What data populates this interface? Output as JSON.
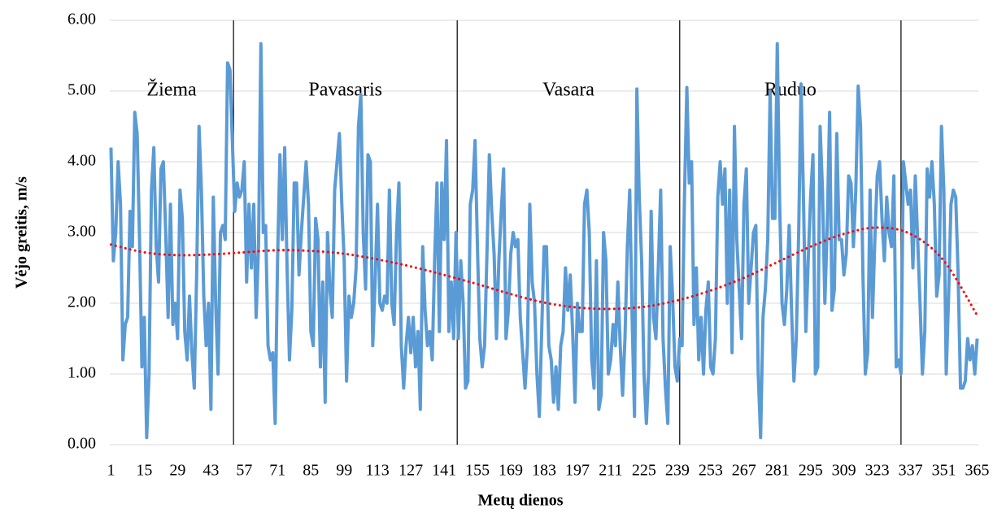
{
  "chart_data": {
    "type": "line",
    "y_label": "Vėjo greitis, m/s",
    "x_label": "Metų dienos",
    "annotations": [
      "Žiema",
      "Pavasaris",
      "Vasara",
      "Ruduo"
    ],
    "season_boundaries": [
      52.5,
      146.5,
      240,
      333
    ],
    "categories": [
      "1",
      null,
      null,
      null,
      null,
      null,
      null,
      null,
      null,
      null,
      null,
      null,
      null,
      null,
      "15",
      null,
      null,
      null,
      null,
      null,
      null,
      null,
      null,
      null,
      null,
      null,
      null,
      null,
      "29",
      null,
      null,
      null,
      null,
      null,
      null,
      null,
      null,
      null,
      null,
      null,
      null,
      null,
      "43",
      null,
      null,
      null,
      null,
      null,
      null,
      null,
      null,
      null,
      null,
      null,
      null,
      null,
      "57",
      null,
      null,
      null,
      null,
      null,
      null,
      null,
      null,
      null,
      null,
      null,
      null,
      null,
      "71",
      null,
      null,
      null,
      null,
      null,
      null,
      null,
      null,
      null,
      null,
      null,
      null,
      null,
      "85",
      null,
      null,
      null,
      null,
      null,
      null,
      null,
      null,
      null,
      null,
      null,
      null,
      null,
      "99",
      null,
      null,
      null,
      null,
      null,
      null,
      null,
      null,
      null,
      null,
      null,
      null,
      null,
      "113",
      null,
      null,
      null,
      null,
      null,
      null,
      null,
      null,
      null,
      null,
      null,
      null,
      null,
      "127",
      null,
      null,
      null,
      null,
      null,
      null,
      null,
      null,
      null,
      null,
      null,
      null,
      null,
      "141",
      null,
      null,
      null,
      null,
      null,
      null,
      null,
      null,
      null,
      null,
      null,
      null,
      null,
      "155",
      null,
      null,
      null,
      null,
      null,
      null,
      null,
      null,
      null,
      null,
      null,
      null,
      null,
      "169",
      null,
      null,
      null,
      null,
      null,
      null,
      null,
      null,
      null,
      null,
      null,
      null,
      null,
      "183",
      null,
      null,
      null,
      null,
      null,
      null,
      null,
      null,
      null,
      null,
      null,
      null,
      null,
      "197",
      null,
      null,
      null,
      null,
      null,
      null,
      null,
      null,
      null,
      null,
      null,
      null,
      null,
      "211",
      null,
      null,
      null,
      null,
      null,
      null,
      null,
      null,
      null,
      null,
      null,
      null,
      null,
      "225",
      null,
      null,
      null,
      null,
      null,
      null,
      null,
      null,
      null,
      null,
      null,
      null,
      null,
      "239",
      null,
      null,
      null,
      null,
      null,
      null,
      null,
      null,
      null,
      null,
      null,
      null,
      null,
      "253",
      null,
      null,
      null,
      null,
      null,
      null,
      null,
      null,
      null,
      null,
      null,
      null,
      null,
      "267",
      null,
      null,
      null,
      null,
      null,
      null,
      null,
      null,
      null,
      null,
      null,
      null,
      null,
      "281",
      null,
      null,
      null,
      null,
      null,
      null,
      null,
      null,
      null,
      null,
      null,
      null,
      null,
      "295",
      null,
      null,
      null,
      null,
      null,
      null,
      null,
      null,
      null,
      null,
      null,
      null,
      null,
      "309",
      null,
      null,
      null,
      null,
      null,
      null,
      null,
      null,
      null,
      null,
      null,
      null,
      null,
      "323",
      null,
      null,
      null,
      null,
      null,
      null,
      null,
      null,
      null,
      null,
      null,
      null,
      null,
      "337",
      null,
      null,
      null,
      null,
      null,
      null,
      null,
      null,
      null,
      null,
      null,
      null,
      null,
      "351",
      null,
      null,
      null,
      null,
      null,
      null,
      null,
      null,
      null,
      null,
      null,
      null,
      null,
      "365"
    ],
    "series": [
      {
        "color": "#5b9bd5",
        "values": [
          4.2,
          2.6,
          3.0,
          4.0,
          3.4,
          1.2,
          1.7,
          1.8,
          3.3,
          2.8,
          4.7,
          4.4,
          2.9,
          1.1,
          1.8,
          0.1,
          1.0,
          3.6,
          4.2,
          2.8,
          2.3,
          3.9,
          4.0,
          3.0,
          1.8,
          3.4,
          1.7,
          2.0,
          1.5,
          3.6,
          3.2,
          1.6,
          1.2,
          2.1,
          1.3,
          0.8,
          2.4,
          4.5,
          3.6,
          2.1,
          1.4,
          2.0,
          0.5,
          3.5,
          2.0,
          1.0,
          3.0,
          3.1,
          2.9,
          5.4,
          5.3,
          4.3,
          3.3,
          3.7,
          3.5,
          3.6,
          4.0,
          2.3,
          3.4,
          2.5,
          3.4,
          1.8,
          2.8,
          5.67,
          3.0,
          3.1,
          1.4,
          1.2,
          1.3,
          0.3,
          2.6,
          4.1,
          2.9,
          4.2,
          2.5,
          1.2,
          1.9,
          3.7,
          3.7,
          2.4,
          3.0,
          3.5,
          4.0,
          3.4,
          1.6,
          1.4,
          3.2,
          2.9,
          1.1,
          2.3,
          0.6,
          3.0,
          2.2,
          1.8,
          3.6,
          4.0,
          4.4,
          3.4,
          2.6,
          0.9,
          2.1,
          1.8,
          2.0,
          2.5,
          4.5,
          4.95,
          3.0,
          2.2,
          4.1,
          4.0,
          1.4,
          2.3,
          3.4,
          2.0,
          1.9,
          2.1,
          2.0,
          3.6,
          2.0,
          1.7,
          3.0,
          3.7,
          1.4,
          0.8,
          1.4,
          1.8,
          1.3,
          1.8,
          1.1,
          1.6,
          0.5,
          2.8,
          1.9,
          1.4,
          1.6,
          1.2,
          2.6,
          3.7,
          1.6,
          3.7,
          2.9,
          4.3,
          1.6,
          2.3,
          1.5,
          3.0,
          1.5,
          2.6,
          2.0,
          0.8,
          0.9,
          3.4,
          3.6,
          4.3,
          2.8,
          1.5,
          1.1,
          1.4,
          2.7,
          4.1,
          3.3,
          2.7,
          1.5,
          2.6,
          3.3,
          3.9,
          1.5,
          1.9,
          2.7,
          3.0,
          2.8,
          2.9,
          1.8,
          1.3,
          0.8,
          1.4,
          3.4,
          2.3,
          2.0,
          1.0,
          0.4,
          1.6,
          2.8,
          2.8,
          1.4,
          1.2,
          0.6,
          1.1,
          0.5,
          1.4,
          1.6,
          2.5,
          1.9,
          2.4,
          1.6,
          0.6,
          2.0,
          1.6,
          1.6,
          3.4,
          3.6,
          3.0,
          1.2,
          0.8,
          2.6,
          0.5,
          0.7,
          3.0,
          2.6,
          1.0,
          1.2,
          1.7,
          1.4,
          2.3,
          1.4,
          0.7,
          1.5,
          2.8,
          3.6,
          1.8,
          0.4,
          5.03,
          3.5,
          2.6,
          1.0,
          0.3,
          1.1,
          3.3,
          1.8,
          1.5,
          2.5,
          3.6,
          1.5,
          0.8,
          0.3,
          2.8,
          2.1,
          1.1,
          0.9,
          1.5,
          1.4,
          3.5,
          5.05,
          3.7,
          4.0,
          1.7,
          2.5,
          1.2,
          1.8,
          1.0,
          1.9,
          2.3,
          1.1,
          1.0,
          1.5,
          3.5,
          4.0,
          3.4,
          3.9,
          2.0,
          3.6,
          1.3,
          4.5,
          2.9,
          2.2,
          1.5,
          3.4,
          3.9,
          2.0,
          2.5,
          3.0,
          3.1,
          1.0,
          0.1,
          1.8,
          2.2,
          2.9,
          5.0,
          3.2,
          3.2,
          5.67,
          3.4,
          2.0,
          1.7,
          2.2,
          3.1,
          1.9,
          0.9,
          1.5,
          3.0,
          5.1,
          3.5,
          1.6,
          2.6,
          3.5,
          4.1,
          1.0,
          1.1,
          4.5,
          3.6,
          2.0,
          3.1,
          4.7,
          1.9,
          2.2,
          4.4,
          2.9,
          2.9,
          2.4,
          2.7,
          3.8,
          3.7,
          2.8,
          3.6,
          5.07,
          4.5,
          2.4,
          1.0,
          1.3,
          3.6,
          1.8,
          2.9,
          3.8,
          4.0,
          3.2,
          2.6,
          3.5,
          3.0,
          2.8,
          3.8,
          1.1,
          1.2,
          1.0,
          4.0,
          3.7,
          3.4,
          3.6,
          2.5,
          3.8,
          2.9,
          2.0,
          1.0,
          1.6,
          3.9,
          3.5,
          4.0,
          3.4,
          2.1,
          2.4,
          4.5,
          3.6,
          1.0,
          2.1,
          3.4,
          3.6,
          3.5,
          2.4,
          0.8,
          0.8,
          0.9,
          1.5,
          1.2,
          1.4,
          1.0,
          1.5
        ]
      }
    ],
    "trend": {
      "color": "#ff0000",
      "x": [
        1,
        15,
        29,
        43,
        57,
        71,
        85,
        99,
        113,
        127,
        141,
        155,
        169,
        183,
        197,
        211,
        225,
        239,
        253,
        267,
        281,
        295,
        309,
        323,
        337,
        351,
        365
      ],
      "values": [
        2.83,
        2.72,
        2.68,
        2.69,
        2.72,
        2.75,
        2.74,
        2.7,
        2.62,
        2.52,
        2.4,
        2.27,
        2.13,
        2.01,
        1.94,
        1.92,
        1.95,
        2.04,
        2.18,
        2.36,
        2.58,
        2.8,
        2.98,
        3.07,
        2.98,
        2.6,
        1.83
      ]
    },
    "ylim": [
      0,
      6
    ],
    "yticks": [
      {
        "value": 0,
        "label": "0.00"
      },
      {
        "value": 1,
        "label": "1.00"
      },
      {
        "value": 2,
        "label": "2.00"
      },
      {
        "value": 3,
        "label": "3.00"
      },
      {
        "value": 4,
        "label": "4.00"
      },
      {
        "value": 5,
        "label": "5.00"
      },
      {
        "value": 6,
        "label": "6.00"
      }
    ],
    "grid": true
  }
}
